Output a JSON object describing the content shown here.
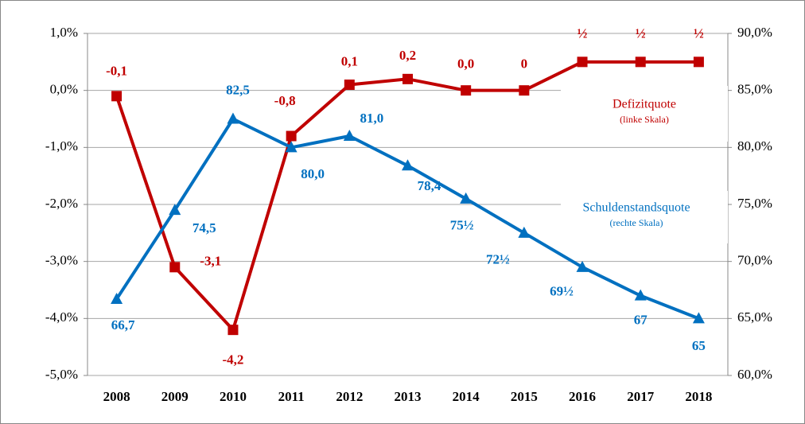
{
  "chart_data": {
    "type": "line",
    "categories": [
      "2008",
      "2009",
      "2010",
      "2011",
      "2012",
      "2013",
      "2014",
      "2015",
      "2016",
      "2017",
      "2018"
    ],
    "series": [
      {
        "name": "Defizitquote",
        "note": "(linke Skala)",
        "color": "#c00000",
        "marker": "square",
        "axis": "y",
        "values": [
          -0.1,
          -3.1,
          -4.2,
          -0.8,
          0.1,
          0.2,
          0.0,
          0,
          0.5,
          0.5,
          0.5
        ],
        "value_labels": [
          "-0,1",
          "-3,1",
          "-4,2",
          "-0,8",
          "0,1",
          "0,2",
          "0,0",
          "0",
          "½",
          "½",
          "½"
        ]
      },
      {
        "name": "Schuldenstandsquote",
        "note": "(rechte Skala)",
        "color": "#0070c0",
        "marker": "triangle",
        "axis": "y2",
        "values": [
          66.7,
          74.5,
          82.5,
          80.0,
          81.0,
          78.4,
          75.5,
          72.5,
          69.5,
          67,
          65
        ],
        "value_labels": [
          "66,7",
          "74,5",
          "82,5",
          "80,0",
          "81,0",
          "78,4",
          "75½",
          "72½",
          "69½",
          "67",
          "65"
        ]
      }
    ],
    "ylim": [
      -5,
      1
    ],
    "yticks": [
      {
        "value": -5,
        "label": "-5,0%"
      },
      {
        "value": -4,
        "label": "-4,0%"
      },
      {
        "value": -3,
        "label": "-3,0%"
      },
      {
        "value": -2,
        "label": "-2,0%"
      },
      {
        "value": -1,
        "label": "-1,0%"
      },
      {
        "value": 0,
        "label": "0,0%"
      },
      {
        "value": 1,
        "label": "1,0%"
      }
    ],
    "y2lim": [
      60,
      90
    ],
    "y2ticks": [
      {
        "value": 60,
        "label": "60,0%"
      },
      {
        "value": 65,
        "label": "65,0%"
      },
      {
        "value": 70,
        "label": "70,0%"
      },
      {
        "value": 75,
        "label": "75,0%"
      },
      {
        "value": 80,
        "label": "80,0%"
      },
      {
        "value": 85,
        "label": "85,0%"
      },
      {
        "value": 90,
        "label": "90,0%"
      }
    ],
    "grid": true
  }
}
